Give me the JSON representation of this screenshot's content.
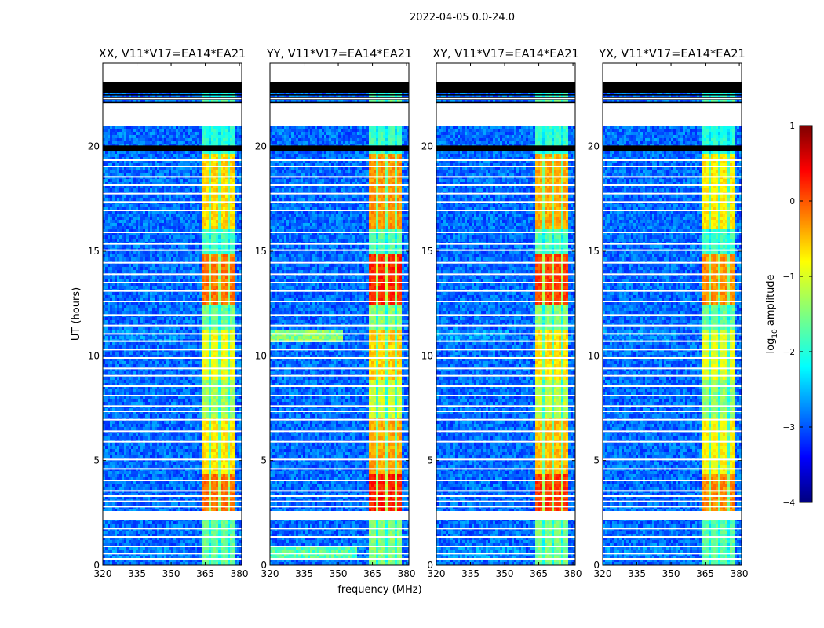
{
  "chart_data": {
    "type": "heatmap",
    "suptitle": "2022-04-05 0.0-24.0",
    "xlabel": "frequency (MHz)",
    "ylabel": "UT (hours)",
    "xlim": [
      320,
      381
    ],
    "ylim": [
      0,
      24
    ],
    "xticks": [
      320,
      335,
      350,
      365,
      380
    ],
    "yticks": [
      0,
      5,
      10,
      15,
      20
    ],
    "panels": [
      {
        "title": "XX, V11*V17=EA14*EA21",
        "band_strength": 0.85,
        "low_freq_rfi": 0.05
      },
      {
        "title": "YY, V11*V17=EA14*EA21",
        "band_strength": 1.0,
        "low_freq_rfi": 0.45
      },
      {
        "title": "XY, V11*V17=EA14*EA21",
        "band_strength": 0.95,
        "low_freq_rfi": 0.08
      },
      {
        "title": "YX, V11*V17=EA14*EA21",
        "band_strength": 0.8,
        "low_freq_rfi": 0.05
      }
    ],
    "signal_band_mhz": [
      363,
      378
    ],
    "signal_blocks_mhz": [
      [
        363,
        367
      ],
      [
        368,
        371
      ],
      [
        372,
        375
      ],
      [
        376,
        378
      ]
    ],
    "flagged_ut_ranges": [
      [
        2.15,
        2.5
      ],
      [
        19.8,
        20.05
      ],
      [
        21.0,
        22.1
      ],
      [
        22.55,
        23.1
      ]
    ],
    "colorbar": {
      "label": "log10 amplitude",
      "range": [
        -4,
        1
      ],
      "ticks": [
        1,
        0,
        -1,
        -2,
        -3,
        -4
      ],
      "tick_labels": [
        "1",
        "0",
        "−1",
        "−2",
        "−3",
        "−4"
      ],
      "colormap": [
        "#00007f",
        "#0000ff",
        "#007fff",
        "#00ffff",
        "#7fff7f",
        "#ffff00",
        "#ff7f00",
        "#ff0000",
        "#7f0000"
      ]
    }
  }
}
